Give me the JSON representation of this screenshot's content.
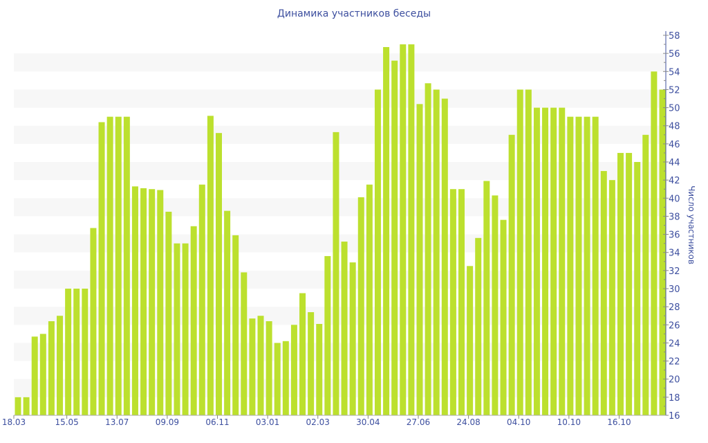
{
  "chart_data": {
    "type": "bar",
    "title": "Динамика участников беседы",
    "xlabel": "",
    "ylabel": "Число участников",
    "ylim": [
      16,
      58
    ],
    "ytick_step": 2,
    "grid": "alternating horizontal bands",
    "bar_color": "#bce02e",
    "axis_color": "#3d4f9f",
    "x_tick_labels": [
      "18.03",
      "15.05",
      "13.07",
      "09.09",
      "06.11",
      "03.01",
      "02.03",
      "30.04",
      "27.06",
      "24.08",
      "04.10",
      "10.10",
      "16.10"
    ],
    "x_tick_every": 6,
    "values": [
      18,
      18,
      24.7,
      25,
      26.4,
      27,
      30,
      30,
      30,
      36.7,
      48.4,
      49,
      49,
      49,
      41.3,
      41.1,
      41,
      40.9,
      38.5,
      35,
      35,
      36.9,
      41.5,
      49.1,
      47.2,
      38.6,
      35.9,
      31.8,
      26.7,
      27,
      26.4,
      24,
      24.2,
      26,
      29.5,
      27.4,
      26.1,
      33.6,
      47.3,
      35.2,
      32.9,
      40.1,
      41.5,
      52,
      56.7,
      55.2,
      57,
      57,
      50.4,
      52.7,
      52,
      51,
      41,
      41,
      32.5,
      35.6,
      41.9,
      40.3,
      37.6,
      47,
      52,
      52,
      50,
      50,
      50,
      50,
      49,
      49,
      49,
      49,
      43,
      42,
      45,
      45,
      44,
      47,
      54,
      52
    ]
  }
}
